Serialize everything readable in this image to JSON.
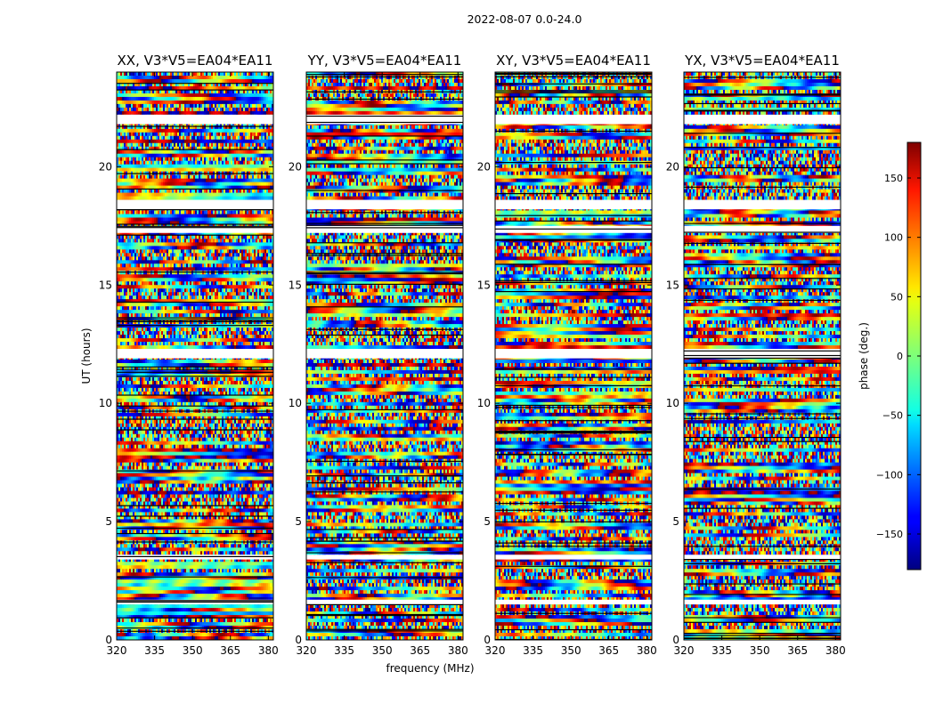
{
  "chart_data": {
    "type": "heatmap",
    "suptitle": "2022-08-07 0.0-24.0",
    "panels": [
      {
        "title": "XX, V3*V5=EA04*EA11",
        "seed": 11
      },
      {
        "title": "YY, V3*V5=EA04*EA11",
        "seed": 23
      },
      {
        "title": "XY, V3*V5=EA04*EA11",
        "seed": 37
      },
      {
        "title": "YX, V3*V5=EA04*EA11",
        "seed": 53
      }
    ],
    "xlabel": "frequency (MHz)",
    "ylabel": "UT (hours)",
    "xlim": [
      320,
      382
    ],
    "ylim": [
      0,
      24
    ],
    "xticks": [
      320,
      335,
      350,
      365,
      380
    ],
    "yticks": [
      0,
      5,
      10,
      15,
      20
    ],
    "colorbar": {
      "label": "phase (deg.)",
      "range": [
        -180,
        180
      ],
      "ticks": [
        150,
        100,
        50,
        0,
        -50,
        -100,
        -150
      ],
      "tick_labels": [
        "150",
        "100",
        "50",
        "0",
        "−50",
        "−100",
        "−150"
      ],
      "colormap": "jet"
    },
    "flagged_gaps_hours": [
      [
        21.8,
        22.2
      ],
      [
        18.2,
        18.6
      ],
      [
        17.2,
        17.5
      ],
      [
        11.9,
        12.3
      ],
      [
        3.4,
        3.6
      ],
      [
        1.5,
        1.7
      ]
    ]
  }
}
